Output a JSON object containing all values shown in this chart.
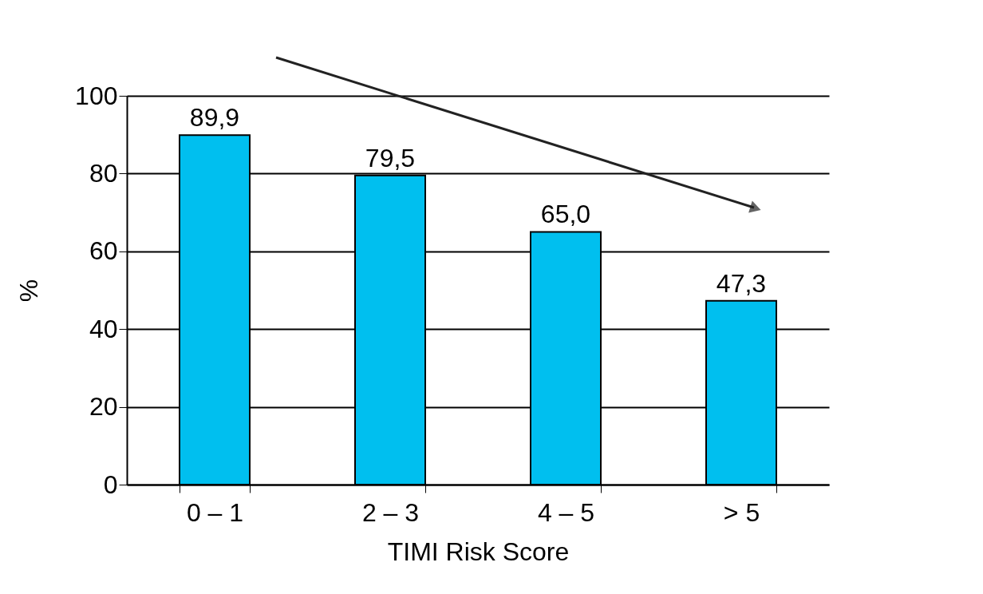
{
  "chart_data": {
    "type": "bar",
    "xlabel": "TIMI Risk Score",
    "ylabel": "%",
    "categories": [
      "0 – 1",
      "2 – 3",
      "4 – 5",
      "> 5"
    ],
    "values": [
      89.9,
      79.5,
      65.0,
      47.3
    ],
    "value_labels": [
      "89,9",
      "79,5",
      "65,0",
      "47,3"
    ],
    "color": "#00bfef",
    "ylim": [
      0,
      100
    ],
    "yticks": [
      0,
      20,
      40,
      60,
      80,
      100
    ],
    "grid": "y"
  }
}
